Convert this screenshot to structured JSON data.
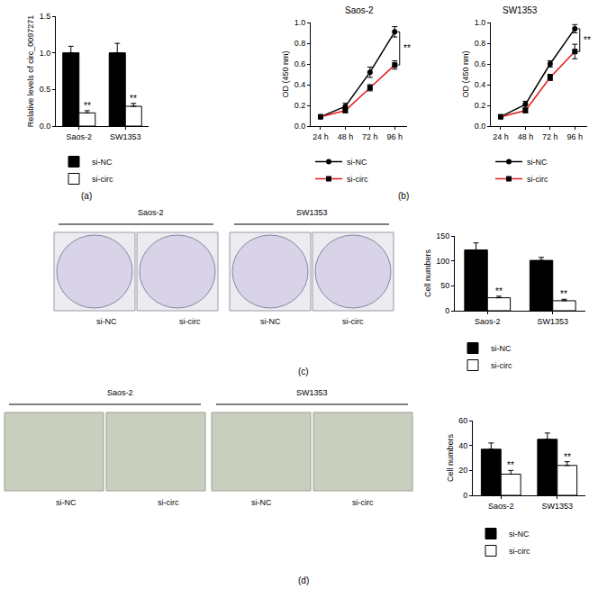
{
  "chart_data": [
    {
      "type": "bar",
      "panel": "(a)",
      "y_label": "Relative levels of circ_0097271",
      "categories": [
        "Saos-2",
        "SW1353"
      ],
      "series": [
        {
          "name": "si-NC",
          "color": "#000000",
          "values": [
            1.0,
            1.0
          ],
          "errors": [
            0.09,
            0.13
          ]
        },
        {
          "name": "si-circ",
          "color": "#ffffff",
          "values": [
            0.18,
            0.27
          ],
          "errors": [
            0.03,
            0.04
          ],
          "significance": [
            "**",
            "**"
          ]
        }
      ],
      "ylim": [
        0,
        1.5
      ],
      "yticks": [
        {
          "value": 0,
          "label": "0.0"
        },
        {
          "value": 0.5,
          "label": "0.5"
        },
        {
          "value": 1,
          "label": "1.0"
        },
        {
          "value": 1.5,
          "label": "1.5"
        }
      ],
      "grid": false,
      "legend": "below"
    },
    {
      "type": "line",
      "panel": "(b)",
      "title": "Saos-2",
      "y_label": "OD (450 nm)",
      "categories": [
        "24 h",
        "48 h",
        "72 h",
        "96 h"
      ],
      "series": [
        {
          "name": "si-NC",
          "color": "#000000",
          "marker": "circle",
          "values": [
            0.09,
            0.19,
            0.52,
            0.91
          ],
          "errors": [
            0.01,
            0.03,
            0.05,
            0.05
          ]
        },
        {
          "name": "si-circ",
          "color": "#e31a1c",
          "marker": "square",
          "values": [
            0.09,
            0.15,
            0.37,
            0.59
          ],
          "errors": [
            0.01,
            0.02,
            0.03,
            0.04
          ]
        }
      ],
      "annotations": [
        {
          "text": "**",
          "x": "96 h",
          "between": [
            "si-NC",
            "si-circ"
          ]
        }
      ],
      "ylim": [
        0,
        1.0
      ],
      "yticks": [
        {
          "value": 0,
          "label": "0.0"
        },
        {
          "value": 0.2,
          "label": "0.2"
        },
        {
          "value": 0.4,
          "label": "0.4"
        },
        {
          "value": 0.6,
          "label": "0.6"
        },
        {
          "value": 0.8,
          "label": "0.8"
        },
        {
          "value": 1.0,
          "label": "1.0"
        }
      ],
      "grid": false,
      "legend": "below"
    },
    {
      "type": "line",
      "title": "SW1353",
      "y_label": "OD (450 nm)",
      "categories": [
        "24 h",
        "48 h",
        "72 h",
        "96 h"
      ],
      "series": [
        {
          "name": "si-NC",
          "color": "#000000",
          "marker": "circle",
          "values": [
            0.09,
            0.21,
            0.6,
            0.94
          ],
          "errors": [
            0.01,
            0.03,
            0.03,
            0.04
          ]
        },
        {
          "name": "si-circ",
          "color": "#e31a1c",
          "marker": "square",
          "values": [
            0.09,
            0.15,
            0.47,
            0.72
          ],
          "errors": [
            0.01,
            0.02,
            0.03,
            0.07
          ]
        }
      ],
      "annotations": [
        {
          "text": "**",
          "x": "96 h",
          "between": [
            "si-NC",
            "si-circ"
          ]
        }
      ],
      "ylim": [
        0,
        1.0
      ],
      "yticks": [
        {
          "value": 0,
          "label": "0.0"
        },
        {
          "value": 0.2,
          "label": "0.2"
        },
        {
          "value": 0.4,
          "label": "0.4"
        },
        {
          "value": 0.6,
          "label": "0.6"
        },
        {
          "value": 0.8,
          "label": "0.8"
        },
        {
          "value": 1.0,
          "label": "1.0"
        }
      ],
      "grid": false,
      "legend": "below"
    },
    {
      "type": "bar",
      "panel": "(c)",
      "y_label": "Cell numbers",
      "categories": [
        "Saos-2",
        "SW1353"
      ],
      "series": [
        {
          "name": "si-NC",
          "color": "#000000",
          "values": [
            122,
            101
          ],
          "errors": [
            14,
            6
          ]
        },
        {
          "name": "si-circ",
          "color": "#ffffff",
          "values": [
            26,
            20
          ],
          "errors": [
            3,
            3
          ],
          "significance": [
            "**",
            "**"
          ]
        }
      ],
      "ylim": [
        0,
        150
      ],
      "yticks": [
        0,
        50,
        100,
        150
      ],
      "grid": false,
      "legend": "below"
    },
    {
      "type": "bar",
      "panel": "(d)",
      "y_label": "Cell numbers",
      "categories": [
        "Saos-2",
        "SW1353"
      ],
      "series": [
        {
          "name": "si-NC",
          "color": "#000000",
          "values": [
            37,
            45
          ],
          "errors": [
            5,
            5
          ]
        },
        {
          "name": "si-circ",
          "color": "#ffffff",
          "values": [
            17,
            24
          ],
          "errors": [
            3,
            3
          ],
          "significance": [
            "**",
            "**"
          ]
        }
      ],
      "ylim": [
        0,
        60
      ],
      "yticks": [
        0,
        20,
        40,
        60
      ],
      "grid": false,
      "legend": "below"
    }
  ],
  "photo_panels": [
    {
      "groups": [
        {
          "title": "Saos-2",
          "labels": [
            "si-NC",
            "si-circ"
          ]
        },
        {
          "title": "SW1353",
          "labels": [
            "si-NC",
            "si-circ"
          ]
        }
      ]
    },
    {
      "groups": [
        {
          "title": "Saos-2",
          "labels": [
            "si-NC",
            "si-circ"
          ]
        },
        {
          "title": "SW1353",
          "labels": [
            "si-NC",
            "si-circ"
          ]
        }
      ]
    }
  ]
}
